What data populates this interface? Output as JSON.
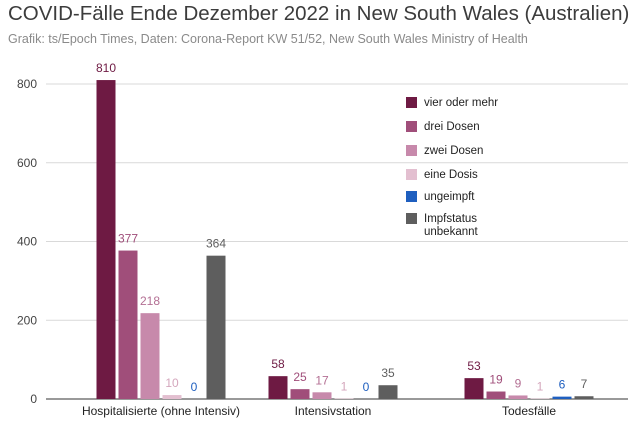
{
  "title": "COVID-Fälle Ende Dezember 2022 in New South Wales (Australien)",
  "subtitle": "Grafik: ts/Epoch Times, Daten: Corona-Report KW 51/52, New South Wales Ministry of Health",
  "chart_data": {
    "type": "bar",
    "categories": [
      "Hospitalisierte (ohne Intensiv)",
      "Intensivstation",
      "Todesfälle"
    ],
    "series": [
      {
        "name": "vier oder mehr",
        "color": "#6e1a43",
        "label_color": "#6e1a43",
        "values": [
          810,
          58,
          53
        ]
      },
      {
        "name": "drei Dosen",
        "color": "#a04e7a",
        "label_color": "#a04e7a",
        "values": [
          377,
          25,
          19
        ]
      },
      {
        "name": "zwei Dosen",
        "color": "#c789ab",
        "label_color": "#b36f93",
        "values": [
          218,
          17,
          9
        ]
      },
      {
        "name": "eine Dosis",
        "color": "#e3bfd0",
        "label_color": "#d4a6bc",
        "values": [
          10,
          1,
          1
        ]
      },
      {
        "name": "ungeimpft",
        "color": "#1f5fbf",
        "label_color": "#1f5fbf",
        "values": [
          0,
          0,
          6
        ]
      },
      {
        "name": "Impfstatus\nunbekannt",
        "color": "#5e5e5e",
        "label_color": "#5e5e5e",
        "values": [
          364,
          35,
          7
        ]
      }
    ],
    "yticks": [
      0,
      200,
      400,
      600,
      800
    ],
    "ylim": [
      0,
      850
    ],
    "legend_position": "top-right",
    "grid": true
  }
}
